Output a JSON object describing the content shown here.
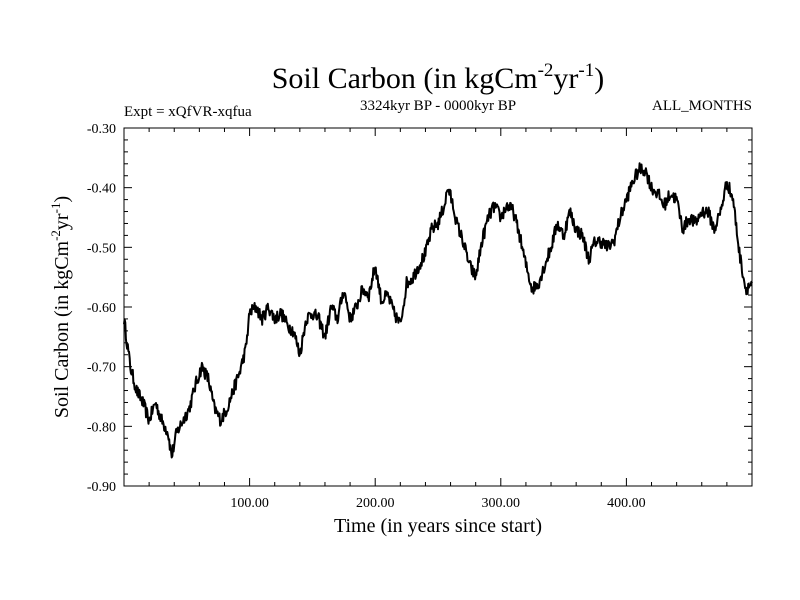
{
  "chart_data": {
    "type": "line",
    "title": "Soil Carbon (in kgCm",
    "title_exp1": "-2",
    "title_mid": "yr",
    "title_exp2": "-1",
    "title_end": ")",
    "expt_label": "Expt = xQfVR-xqfua",
    "period_label": "3324kyr BP - 0000kyr BP",
    "months_label": "ALL_MONTHS",
    "xlabel": "Time (in years since start)",
    "ylabel_main": "Soil Carbon (in kgCm",
    "ylabel_exp1": "-2",
    "ylabel_mid": "yr",
    "ylabel_exp2": "-1",
    "ylabel_end": ")",
    "xlim": [
      0,
      500
    ],
    "ylim": [
      -0.9,
      -0.3
    ],
    "x_ticks": [
      100,
      200,
      300,
      400
    ],
    "x_tick_labels": [
      "100.00",
      "200.00",
      "300.00",
      "400.00"
    ],
    "y_ticks": [
      -0.9,
      -0.8,
      -0.7,
      -0.6,
      -0.5,
      -0.4,
      -0.3
    ],
    "y_tick_labels": [
      "-0.90",
      "-0.80",
      "-0.70",
      "-0.60",
      "-0.50",
      "-0.40",
      "-0.30"
    ],
    "series": [
      {
        "name": "Soil Carbon",
        "color": "#000000",
        "x": [
          0,
          5,
          10,
          15,
          20,
          25,
          30,
          35,
          38,
          42,
          47,
          52,
          57,
          62,
          67,
          72,
          77,
          82,
          87,
          92,
          97,
          100,
          105,
          110,
          115,
          120,
          125,
          130,
          135,
          140,
          145,
          150,
          155,
          160,
          165,
          170,
          175,
          180,
          185,
          190,
          195,
          200,
          205,
          210,
          215,
          220,
          225,
          230,
          235,
          240,
          245,
          250,
          255,
          258,
          262,
          265,
          270,
          275,
          280,
          285,
          290,
          295,
          300,
          305,
          310,
          315,
          320,
          325,
          330,
          335,
          340,
          345,
          350,
          355,
          360,
          365,
          370,
          375,
          380,
          385,
          390,
          395,
          400,
          405,
          410,
          415,
          420,
          425,
          430,
          435,
          440,
          445,
          450,
          455,
          460,
          465,
          470,
          475,
          480,
          485,
          490,
          495,
          500
        ],
        "y": [
          -0.62,
          -0.7,
          -0.74,
          -0.76,
          -0.79,
          -0.76,
          -0.79,
          -0.81,
          -0.85,
          -0.81,
          -0.79,
          -0.77,
          -0.73,
          -0.7,
          -0.72,
          -0.77,
          -0.79,
          -0.77,
          -0.74,
          -0.71,
          -0.67,
          -0.61,
          -0.6,
          -0.62,
          -0.6,
          -0.62,
          -0.61,
          -0.63,
          -0.64,
          -0.68,
          -0.62,
          -0.61,
          -0.62,
          -0.65,
          -0.6,
          -0.62,
          -0.57,
          -0.62,
          -0.6,
          -0.57,
          -0.58,
          -0.53,
          -0.59,
          -0.58,
          -0.61,
          -0.63,
          -0.56,
          -0.55,
          -0.53,
          -0.51,
          -0.47,
          -0.46,
          -0.43,
          -0.4,
          -0.43,
          -0.46,
          -0.49,
          -0.53,
          -0.55,
          -0.49,
          -0.45,
          -0.43,
          -0.45,
          -0.43,
          -0.44,
          -0.48,
          -0.53,
          -0.57,
          -0.56,
          -0.53,
          -0.5,
          -0.46,
          -0.48,
          -0.44,
          -0.47,
          -0.48,
          -0.52,
          -0.49,
          -0.49,
          -0.5,
          -0.49,
          -0.45,
          -0.42,
          -0.39,
          -0.37,
          -0.37,
          -0.4,
          -0.41,
          -0.43,
          -0.41,
          -0.42,
          -0.47,
          -0.45,
          -0.46,
          -0.44,
          -0.44,
          -0.47,
          -0.44,
          -0.39,
          -0.42,
          -0.51,
          -0.57,
          -0.56
        ]
      }
    ]
  }
}
